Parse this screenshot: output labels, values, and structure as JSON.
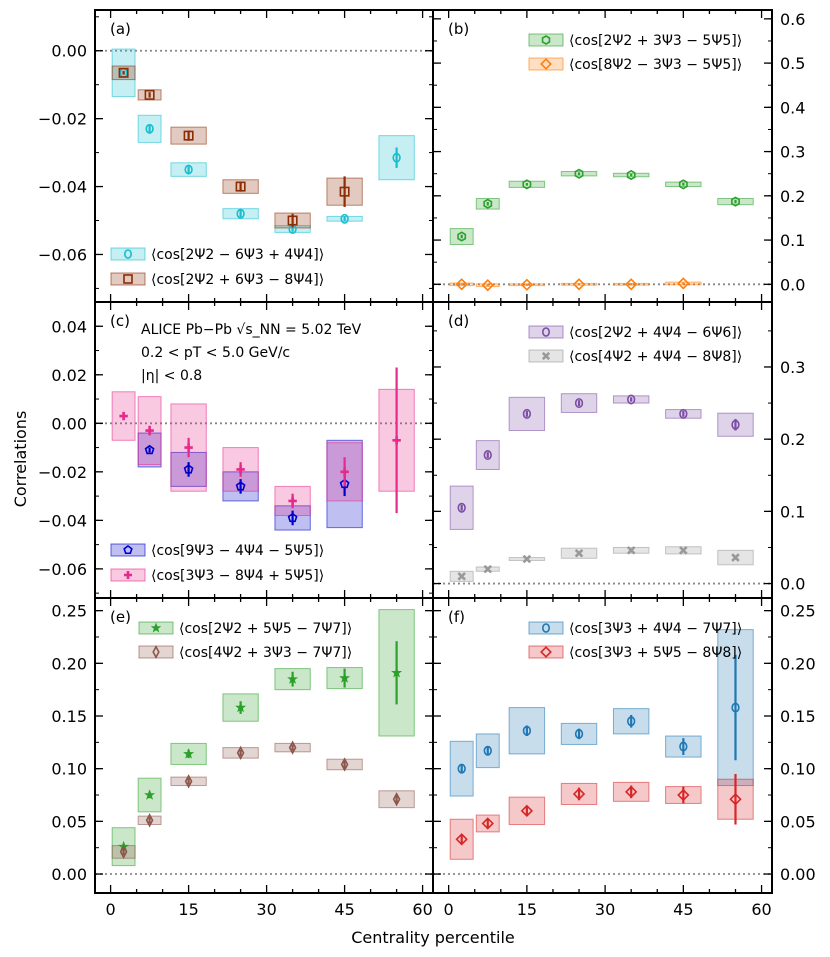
{
  "chart_data": {
    "type": "scatter",
    "xlabel": "Centrality percentile",
    "ylabel": "Correlations",
    "x_ticks": [
      "0",
      "15",
      "30",
      "45",
      "60"
    ],
    "xlim": [
      -3,
      62
    ],
    "annotation": {
      "line1": "ALICE Pb−Pb √s_NN = 5.02 TeV",
      "line2": "0.2 < pT < 5.0 GeV/c",
      "line3": "|η| < 0.8"
    },
    "panels": [
      {
        "label": "(a)",
        "ylim": [
          -0.074,
          0.012
        ],
        "y_ticks": [
          0.0,
          -0.02,
          -0.04,
          -0.06
        ],
        "y_tick_labels": [
          "0.00",
          "−0.02",
          "−0.04",
          "−0.06"
        ],
        "y_axis_side": "left",
        "legend_position": "bottom-left",
        "series": [
          {
            "name": "⟨cos[2Ψ2 − 6Ψ3 + 4Ψ4]⟩",
            "color": "#17becf",
            "marker": "circle",
            "x": [
              2.5,
              7.5,
              15,
              25,
              35,
              45,
              55
            ],
            "y": [
              -0.0065,
              -0.023,
              -0.035,
              -0.048,
              -0.0525,
              -0.0495,
              -0.0315
            ],
            "stat": [
              0.0005,
              0.001,
              0.001,
              0.001,
              0.0008,
              0.0008,
              0.003
            ],
            "sys": [
              0.007,
              0.004,
              0.002,
              0.0015,
              0.001,
              0.0007,
              0.0065
            ]
          },
          {
            "name": "⟨cos[2Ψ2 + 6Ψ3 − 8Ψ4]⟩",
            "color": "#8c2d04",
            "marker": "square",
            "x": [
              2.5,
              7.5,
              15,
              25,
              35,
              45
            ],
            "y": [
              -0.0065,
              -0.013,
              -0.025,
              -0.04,
              -0.05,
              -0.0415
            ],
            "stat": [
              0.0005,
              0.0008,
              0.0015,
              0.0015,
              0.002,
              0.0045
            ],
            "sys": [
              0.002,
              0.0015,
              0.0025,
              0.002,
              0.0022,
              0.004
            ]
          }
        ]
      },
      {
        "label": "(b)",
        "ylim": [
          -0.04,
          0.62
        ],
        "y_ticks": [
          0.0,
          0.1,
          0.2,
          0.3,
          0.4,
          0.5,
          0.6
        ],
        "y_tick_labels": [
          "0.0",
          "0.1",
          "0.2",
          "0.3",
          "0.4",
          "0.5",
          "0.6"
        ],
        "y_axis_side": "right",
        "legend_position": "top-right",
        "series": [
          {
            "name": "⟨cos[2Ψ2 + 3Ψ3 − 5Ψ5]⟩",
            "color": "#2ca02c",
            "marker": "hexagon",
            "x": [
              2.5,
              7.5,
              15,
              25,
              35,
              45,
              55
            ],
            "y": [
              0.108,
              0.182,
              0.226,
              0.25,
              0.247,
              0.226,
              0.187
            ],
            "stat": [
              0.004,
              0.004,
              0.003,
              0.003,
              0.003,
              0.003,
              0.004
            ],
            "sys": [
              0.018,
              0.012,
              0.007,
              0.005,
              0.004,
              0.005,
              0.007
            ]
          },
          {
            "name": "⟨cos[8Ψ2 − 3Ψ3 − 5Ψ5]⟩",
            "color": "#ff7f0e",
            "marker": "diamond",
            "x": [
              2.5,
              7.5,
              15,
              25,
              35,
              45
            ],
            "y": [
              0.0,
              -0.002,
              -0.001,
              0.0,
              0.0,
              0.002
            ],
            "stat": [
              0.002,
              0.002,
              0.002,
              0.002,
              0.002,
              0.002
            ],
            "sys": [
              0.003,
              0.003,
              0.002,
              0.002,
              0.002,
              0.003
            ]
          }
        ]
      },
      {
        "label": "(c)",
        "ylim": [
          -0.072,
          0.05
        ],
        "y_ticks": [
          0.04,
          0.02,
          0.0,
          -0.02,
          -0.04,
          -0.06
        ],
        "y_tick_labels": [
          "0.04",
          "0.02",
          "0.00",
          "−0.02",
          "−0.04",
          "−0.06"
        ],
        "y_axis_side": "left",
        "legend_position": "bottom-left",
        "series": [
          {
            "name": "⟨cos[9Ψ3 − 4Ψ4 − 5Ψ5]⟩",
            "color": "#0000cc",
            "marker": "pentagon",
            "x": [
              7.5,
              15,
              25,
              35,
              45
            ],
            "y": [
              -0.011,
              -0.019,
              -0.026,
              -0.039,
              -0.025
            ],
            "stat": [
              0.001,
              0.003,
              0.003,
              0.003,
              0.005
            ],
            "sys": [
              0.007,
              0.007,
              0.006,
              0.005,
              0.018
            ]
          },
          {
            "name": "⟨cos[3Ψ3 − 8Ψ4 + 5Ψ5]⟩",
            "color": "#e7298a",
            "marker": "plus",
            "x": [
              2.5,
              7.5,
              15,
              25,
              35,
              45,
              55
            ],
            "y": [
              0.003,
              -0.003,
              -0.01,
              -0.019,
              -0.032,
              -0.02,
              -0.007
            ],
            "stat": [
              0.0015,
              0.002,
              0.004,
              0.003,
              0.003,
              0.006,
              0.03
            ],
            "sys": [
              0.01,
              0.014,
              0.018,
              0.009,
              0.006,
              0.012,
              0.021
            ]
          }
        ]
      },
      {
        "label": "(d)",
        "ylim": [
          -0.02,
          0.39
        ],
        "y_ticks": [
          0.0,
          0.1,
          0.2,
          0.3
        ],
        "y_tick_labels": [
          "0.0",
          "0.1",
          "0.2",
          "0.3"
        ],
        "y_axis_side": "right",
        "legend_position": "top-right",
        "series": [
          {
            "name": "⟨cos[2Ψ2 + 4Ψ4 − 6Ψ6]⟩",
            "color": "#7b4ea3",
            "marker": "circle",
            "x": [
              2.5,
              7.5,
              15,
              25,
              35,
              45,
              55
            ],
            "y": [
              0.105,
              0.178,
              0.235,
              0.25,
              0.255,
              0.235,
              0.22
            ],
            "stat": [
              0.004,
              0.004,
              0.004,
              0.004,
              0.003,
              0.004,
              0.008
            ],
            "sys": [
              0.03,
              0.02,
              0.023,
              0.013,
              0.005,
              0.006,
              0.016
            ]
          },
          {
            "name": "⟨cos[4Ψ2 + 4Ψ4 − 8Ψ8]⟩",
            "color": "#999999",
            "marker": "cross",
            "x": [
              2.5,
              7.5,
              15,
              25,
              35,
              45,
              55
            ],
            "y": [
              0.01,
              0.02,
              0.034,
              0.042,
              0.046,
              0.046,
              0.036
            ],
            "stat": [
              0.002,
              0.002,
              0.002,
              0.002,
              0.002,
              0.002,
              0.003
            ],
            "sys": [
              0.007,
              0.003,
              0.002,
              0.007,
              0.004,
              0.005,
              0.01
            ]
          }
        ]
      },
      {
        "label": "(e)",
        "ylim": [
          -0.018,
          0.262
        ],
        "y_ticks": [
          0.0,
          0.05,
          0.1,
          0.15,
          0.2,
          0.25
        ],
        "y_tick_labels": [
          "0.00",
          "0.05",
          "0.10",
          "0.15",
          "0.20",
          "0.25"
        ],
        "y_axis_side": "left",
        "legend_position": "top-right",
        "series": [
          {
            "name": "⟨cos[2Ψ2 + 5Ψ5 − 7Ψ7]⟩",
            "color": "#2ca02c",
            "marker": "star",
            "x": [
              2.5,
              7.5,
              15,
              25,
              35,
              45,
              55
            ],
            "y": [
              0.026,
              0.075,
              0.114,
              0.158,
              0.185,
              0.186,
              0.191
            ],
            "stat": [
              0.003,
              0.003,
              0.004,
              0.006,
              0.007,
              0.009,
              0.03
            ],
            "sys": [
              0.018,
              0.016,
              0.01,
              0.013,
              0.01,
              0.01,
              0.06
            ]
          },
          {
            "name": "⟨cos[4Ψ2 + 3Ψ3 − 7Ψ7]⟩",
            "color": "#8c564b",
            "marker": "thin-diamond",
            "x": [
              2.5,
              7.5,
              15,
              25,
              35,
              45,
              55
            ],
            "y": [
              0.021,
              0.051,
              0.088,
              0.115,
              0.12,
              0.104,
              0.071
            ],
            "stat": [
              0.003,
              0.003,
              0.003,
              0.003,
              0.003,
              0.004,
              0.004
            ],
            "sys": [
              0.006,
              0.004,
              0.004,
              0.005,
              0.004,
              0.005,
              0.008
            ]
          }
        ]
      },
      {
        "label": "(f)",
        "ylim": [
          -0.018,
          0.262
        ],
        "y_ticks": [
          0.0,
          0.05,
          0.1,
          0.15,
          0.2,
          0.25
        ],
        "y_tick_labels": [
          "0.00",
          "0.05",
          "0.10",
          "0.15",
          "0.20",
          "0.25"
        ],
        "y_axis_side": "right",
        "legend_position": "top-right",
        "series": [
          {
            "name": "⟨cos[3Ψ3 + 4Ψ4 − 7Ψ7]⟩",
            "color": "#1f77b4",
            "marker": "circle",
            "x": [
              2.5,
              7.5,
              15,
              25,
              35,
              45,
              55
            ],
            "y": [
              0.1,
              0.117,
              0.136,
              0.133,
              0.145,
              0.121,
              0.158
            ],
            "stat": [
              0.004,
              0.004,
              0.005,
              0.005,
              0.006,
              0.008,
              0.05
            ],
            "sys": [
              0.026,
              0.016,
              0.022,
              0.01,
              0.012,
              0.01,
              0.074
            ]
          },
          {
            "name": "⟨cos[3Ψ3 + 5Ψ5 − 8Ψ8]⟩",
            "color": "#d62728",
            "marker": "diamond",
            "x": [
              2.5,
              7.5,
              15,
              25,
              35,
              45,
              55
            ],
            "y": [
              0.033,
              0.048,
              0.06,
              0.076,
              0.078,
              0.075,
              0.071
            ],
            "stat": [
              0.004,
              0.004,
              0.004,
              0.006,
              0.006,
              0.008,
              0.024
            ],
            "sys": [
              0.019,
              0.008,
              0.013,
              0.01,
              0.009,
              0.008,
              0.019
            ]
          }
        ]
      }
    ]
  }
}
